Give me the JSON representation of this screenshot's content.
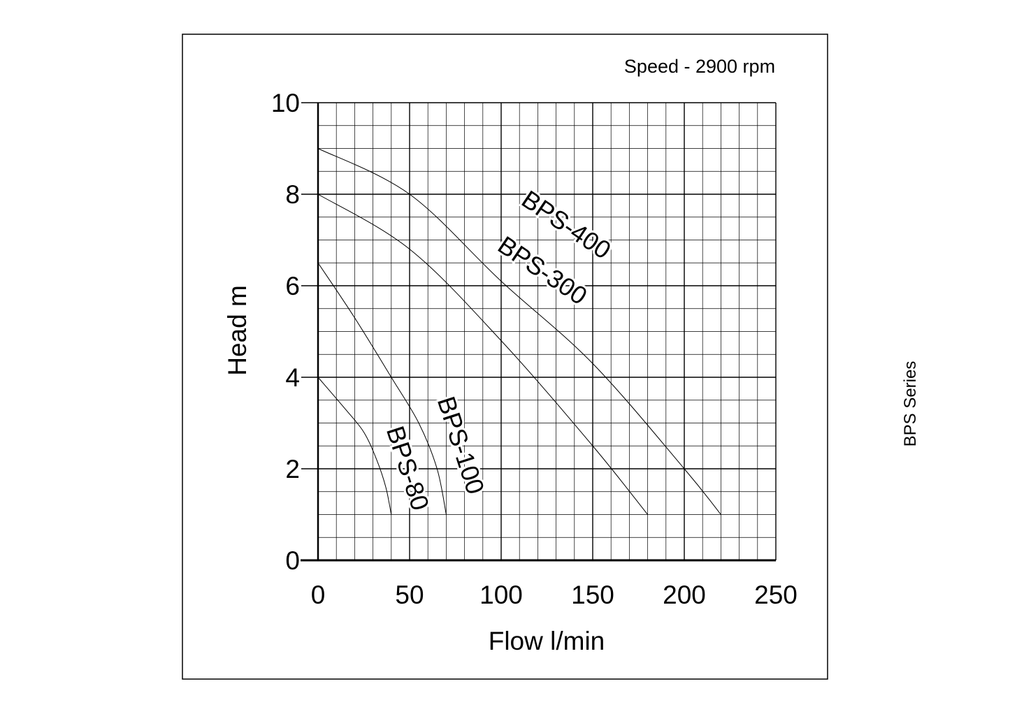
{
  "speed_note": "Speed - 2900 rpm",
  "side_label": "BPS Series",
  "chart_data": {
    "type": "line",
    "title": "",
    "xlabel": "Flow l/min",
    "ylabel": "Head m",
    "xlim": [
      0,
      250
    ],
    "ylim": [
      0,
      10
    ],
    "x_major_ticks": [
      0,
      50,
      100,
      150,
      200,
      250
    ],
    "y_major_ticks": [
      0,
      2,
      4,
      6,
      8,
      10
    ],
    "x_minor_step": 10,
    "y_minor_step": 0.5,
    "grid": true,
    "legend": "none",
    "series": [
      {
        "name": "BPS-400",
        "x": [
          0,
          50,
          100,
          150,
          200,
          220
        ],
        "y": [
          9.0,
          8.0,
          6.1,
          4.3,
          2.0,
          1.0
        ]
      },
      {
        "name": "BPS-300",
        "x": [
          0,
          50,
          100,
          150,
          180
        ],
        "y": [
          8.0,
          6.8,
          4.8,
          2.5,
          1.0
        ]
      },
      {
        "name": "BPS-100",
        "x": [
          0,
          20,
          40,
          55,
          65,
          70
        ],
        "y": [
          6.5,
          5.3,
          4.0,
          3.0,
          2.0,
          1.0
        ]
      },
      {
        "name": "BPS-80",
        "x": [
          0,
          15,
          25,
          32,
          37,
          40
        ],
        "y": [
          4.0,
          3.3,
          2.8,
          2.2,
          1.6,
          1.0
        ]
      }
    ]
  }
}
